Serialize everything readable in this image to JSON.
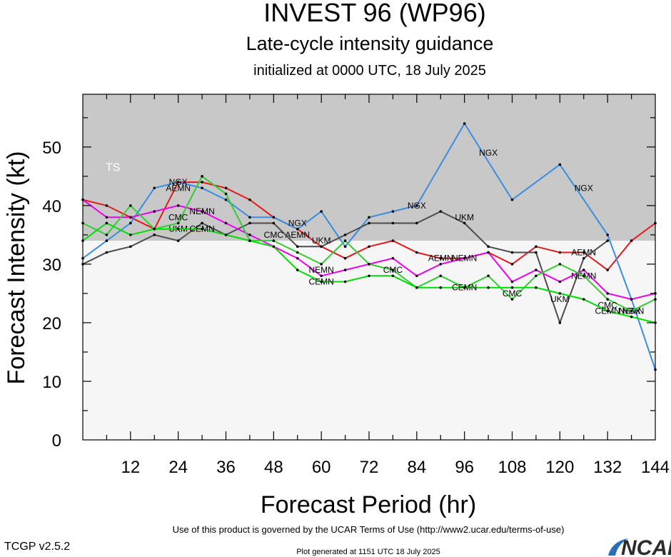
{
  "header": {
    "title": "INVEST 96 (WP96)",
    "subtitle": "Late-cycle intensity guidance",
    "init_line": "initialized at 0000 UTC, 18 July 2025"
  },
  "footer": {
    "terms": "Use of this product is governed by the UCAR Terms of Use (http://www2.ucar.edu/terms-of-use)",
    "generated": "Plot generated at 1151 UTC   18 July 2025",
    "version": "TCGP v2.5.2",
    "logo": "NCAR"
  },
  "colors": {
    "ts_band": "#c8c8c8",
    "plot_bg": "#f6f6f6",
    "AEMN": "#e31a1c",
    "NGX": "#3a8de0",
    "UKM": "#4d4d4d",
    "NEMN": "#ee00ee",
    "CMC": "#33cc33",
    "CEMN": "#00dd00"
  },
  "chart_data": {
    "type": "line",
    "xlabel": "Forecast Period (hr)",
    "ylabel": "Forecast Intensity (kt)",
    "xlim": [
      0,
      144
    ],
    "ylim": [
      0,
      59
    ],
    "xticks": [
      12,
      24,
      36,
      48,
      60,
      72,
      84,
      96,
      108,
      120,
      132,
      144
    ],
    "yticks": [
      0,
      10,
      20,
      30,
      40,
      50
    ],
    "bands": [
      {
        "name": "TS",
        "from": 34,
        "to": 59
      }
    ],
    "series": [
      {
        "name": "AEMN",
        "points": [
          [
            0,
            41
          ],
          [
            6,
            40
          ],
          [
            12,
            38
          ],
          [
            18,
            36
          ],
          [
            24,
            44
          ],
          [
            30,
            44
          ],
          [
            36,
            43
          ],
          [
            42,
            41
          ],
          [
            48,
            38
          ],
          [
            54,
            36
          ],
          [
            60,
            33
          ],
          [
            66,
            31
          ],
          [
            72,
            33
          ],
          [
            78,
            34
          ],
          [
            84,
            32
          ],
          [
            90,
            31
          ],
          [
            96,
            31
          ],
          [
            102,
            32
          ],
          [
            108,
            30
          ],
          [
            114,
            33
          ],
          [
            120,
            32
          ],
          [
            126,
            32
          ],
          [
            132,
            29
          ],
          [
            138,
            34
          ],
          [
            144,
            37
          ]
        ],
        "labels": [
          {
            "x": 24,
            "y": 43
          },
          {
            "x": 54,
            "y": 35
          },
          {
            "x": 90,
            "y": 31
          },
          {
            "x": 126,
            "y": 32
          }
        ]
      },
      {
        "name": "NGX",
        "points": [
          [
            0,
            31
          ],
          [
            6,
            34
          ],
          [
            12,
            37
          ],
          [
            18,
            43
          ],
          [
            24,
            44
          ],
          [
            30,
            43
          ],
          [
            36,
            41
          ],
          [
            42,
            38
          ],
          [
            48,
            38
          ],
          [
            54,
            36
          ],
          [
            60,
            39
          ],
          [
            66,
            33
          ],
          [
            72,
            38
          ],
          [
            78,
            39
          ],
          [
            84,
            40
          ],
          [
            96,
            54
          ],
          [
            108,
            41
          ],
          [
            120,
            47
          ],
          [
            132,
            35
          ],
          [
            138,
            24
          ],
          [
            144,
            12
          ]
        ],
        "labels": [
          {
            "x": 24,
            "y": 44
          },
          {
            "x": 54,
            "y": 37
          },
          {
            "x": 84,
            "y": 40
          },
          {
            "x": 102,
            "y": 49
          },
          {
            "x": 126,
            "y": 43
          },
          {
            "x": 138,
            "y": 22
          }
        ]
      },
      {
        "name": "UKM",
        "points": [
          [
            0,
            30
          ],
          [
            6,
            32
          ],
          [
            12,
            33
          ],
          [
            18,
            35
          ],
          [
            24,
            34
          ],
          [
            30,
            37
          ],
          [
            36,
            35
          ],
          [
            42,
            37
          ],
          [
            48,
            37
          ],
          [
            54,
            33
          ],
          [
            60,
            33
          ],
          [
            66,
            35
          ],
          [
            72,
            37
          ],
          [
            78,
            37
          ],
          [
            84,
            37
          ],
          [
            90,
            39
          ],
          [
            96,
            37
          ],
          [
            102,
            33
          ],
          [
            108,
            32
          ],
          [
            114,
            32
          ],
          [
            120,
            20
          ],
          [
            126,
            31
          ],
          [
            132,
            34
          ]
        ],
        "labels": [
          {
            "x": 24,
            "y": 36
          },
          {
            "x": 60,
            "y": 34
          },
          {
            "x": 96,
            "y": 38
          },
          {
            "x": 120,
            "y": 24
          }
        ]
      },
      {
        "name": "NEMN",
        "points": [
          [
            0,
            41
          ],
          [
            6,
            38
          ],
          [
            12,
            38
          ],
          [
            18,
            39
          ],
          [
            24,
            40
          ],
          [
            30,
            39
          ],
          [
            36,
            37
          ],
          [
            42,
            35
          ],
          [
            48,
            33
          ],
          [
            54,
            31
          ],
          [
            60,
            28
          ],
          [
            66,
            29
          ],
          [
            72,
            30
          ],
          [
            78,
            31
          ],
          [
            84,
            28
          ],
          [
            90,
            30
          ],
          [
            96,
            31
          ],
          [
            102,
            32
          ],
          [
            108,
            27
          ],
          [
            114,
            29
          ],
          [
            120,
            27
          ],
          [
            126,
            29
          ],
          [
            132,
            25
          ],
          [
            138,
            24
          ],
          [
            144,
            25
          ]
        ],
        "labels": [
          {
            "x": 30,
            "y": 39
          },
          {
            "x": 60,
            "y": 29
          },
          {
            "x": 96,
            "y": 31
          },
          {
            "x": 126,
            "y": 28
          },
          {
            "x": 138,
            "y": 22
          }
        ]
      },
      {
        "name": "CMC",
        "points": [
          [
            0,
            37
          ],
          [
            6,
            35
          ],
          [
            12,
            40
          ],
          [
            18,
            36
          ],
          [
            24,
            37
          ],
          [
            30,
            45
          ],
          [
            36,
            42
          ],
          [
            42,
            34
          ],
          [
            48,
            34
          ],
          [
            54,
            32
          ],
          [
            60,
            30
          ],
          [
            66,
            34
          ],
          [
            72,
            30
          ],
          [
            78,
            29
          ],
          [
            84,
            26
          ],
          [
            90,
            28
          ],
          [
            96,
            26
          ],
          [
            102,
            28
          ],
          [
            108,
            24
          ],
          [
            114,
            28
          ],
          [
            120,
            30
          ],
          [
            126,
            28
          ],
          [
            132,
            24
          ],
          [
            138,
            22
          ],
          [
            144,
            24
          ]
        ],
        "labels": [
          {
            "x": 24,
            "y": 38
          },
          {
            "x": 48,
            "y": 35
          },
          {
            "x": 78,
            "y": 29
          },
          {
            "x": 108,
            "y": 25
          },
          {
            "x": 132,
            "y": 23
          }
        ]
      },
      {
        "name": "CEMN",
        "points": [
          [
            0,
            34
          ],
          [
            6,
            37
          ],
          [
            12,
            35
          ],
          [
            18,
            36
          ],
          [
            24,
            36
          ],
          [
            30,
            36
          ],
          [
            36,
            35
          ],
          [
            42,
            34
          ],
          [
            48,
            33
          ],
          [
            54,
            29
          ],
          [
            60,
            27
          ],
          [
            66,
            27
          ],
          [
            72,
            28
          ],
          [
            78,
            28
          ],
          [
            84,
            26
          ],
          [
            90,
            26
          ],
          [
            96,
            26
          ],
          [
            102,
            26
          ],
          [
            108,
            26
          ],
          [
            114,
            26
          ],
          [
            120,
            25
          ],
          [
            126,
            24
          ],
          [
            132,
            22
          ],
          [
            138,
            21
          ],
          [
            144,
            20
          ]
        ],
        "labels": [
          {
            "x": 30,
            "y": 36
          },
          {
            "x": 60,
            "y": 27
          },
          {
            "x": 96,
            "y": 26
          },
          {
            "x": 132,
            "y": 22
          }
        ]
      }
    ]
  }
}
